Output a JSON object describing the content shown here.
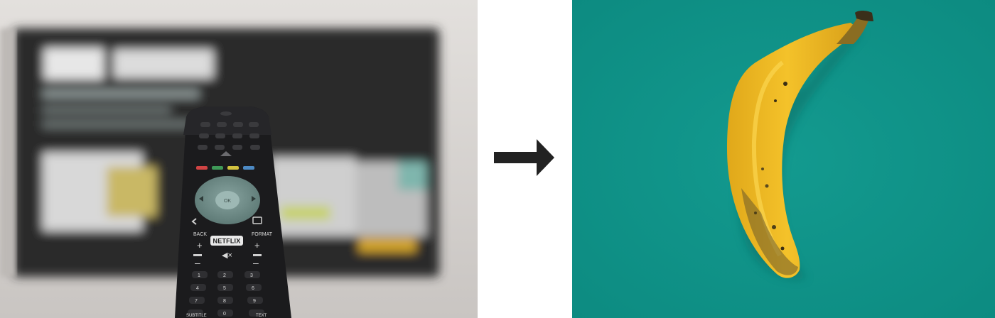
{
  "left_photo": {
    "subject": "tv-remote-in-front-of-tv",
    "remote": {
      "brand_button": "NETFLIX",
      "labels": [
        "BACK",
        "FORMAT",
        "OK",
        "SUBTITLE",
        "TEXT"
      ]
    },
    "colors": {
      "wall": "#d9d6d4",
      "tv_screen": "#252726",
      "remote": "#1b1b1d",
      "dpad": "#6f8c88"
    }
  },
  "transition": {
    "icon": "right-arrow-icon",
    "color": "#222222"
  },
  "right_photo": {
    "subject": "banana-on-teal-background",
    "colors": {
      "background": "#0f9388",
      "banana": "#f1bd25",
      "stem": "#3a2f1a"
    }
  }
}
